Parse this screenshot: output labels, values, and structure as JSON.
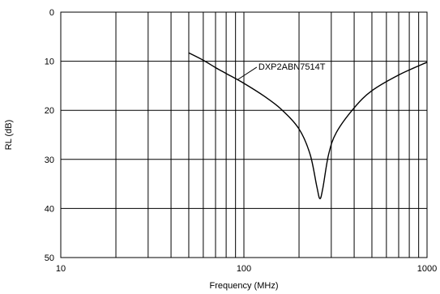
{
  "chart_data": {
    "type": "line",
    "title": "",
    "xlabel": "Frequency (MHz)",
    "ylabel": "RL (dB)",
    "x_scale": "log",
    "xlim": [
      10,
      1000
    ],
    "ylim": [
      0,
      50
    ],
    "y_inverted": true,
    "grid": true,
    "x_tick_labels": [
      "10",
      "100",
      "1000"
    ],
    "x_tick_values": [
      10,
      100,
      1000
    ],
    "y_tick_labels": [
      "0",
      "10",
      "20",
      "30",
      "40",
      "50"
    ],
    "y_tick_values": [
      0,
      10,
      20,
      30,
      40,
      50
    ],
    "series": [
      {
        "name": "DXP2ABN7514T",
        "x": [
          50,
          60,
          70,
          80,
          100,
          130,
          160,
          200,
          230,
          250,
          260,
          270,
          290,
          320,
          400,
          500,
          700,
          1000
        ],
        "y": [
          8.3,
          9.8,
          11.3,
          12.5,
          14.5,
          17.2,
          19.8,
          23.8,
          29.0,
          35.5,
          38.0,
          35.8,
          29.0,
          24.5,
          19.5,
          16.0,
          12.8,
          10.2
        ]
      }
    ],
    "annotations": [
      {
        "text": "DXP2ABN7514T",
        "x": 120,
        "y": 11.7,
        "points_to": {
          "x": 92,
          "y": 13.8
        }
      }
    ]
  }
}
